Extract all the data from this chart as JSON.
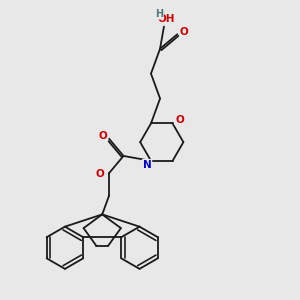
{
  "background_color": "#e8e8e8",
  "atom_colors": {
    "O": "#cc0000",
    "N": "#0000cc",
    "C": "#000000",
    "H": "#557777"
  },
  "bond_color": "#1a1a1a",
  "bond_width": 1.3,
  "figsize": [
    3.0,
    3.0
  ],
  "dpi": 100,
  "xlim": [
    0,
    3.0
  ],
  "ylim": [
    0,
    3.0
  ],
  "font_size": 7.5
}
